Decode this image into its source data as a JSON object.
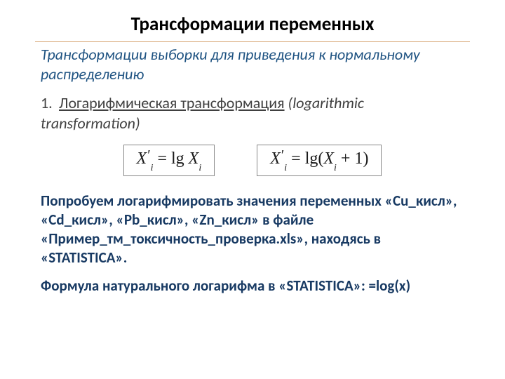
{
  "title": {
    "text": "Трансформации переменных",
    "fontsize": 27,
    "color": "#000000",
    "margin_top": 18
  },
  "divider": {
    "color": "#d9a97a"
  },
  "subtitle": {
    "text": "Трансформации выборки для приведения к нормальному распределению",
    "fontsize": 22,
    "color": "#1f5382"
  },
  "item1": {
    "number": "1.",
    "underlined": "Логарифмическая трансформация",
    "rest_italic": " (logarithmic transformation)",
    "fontsize": 22,
    "color": "#404040"
  },
  "formulas": {
    "border_color": "#888888",
    "font": "Times New Roman",
    "fontsize": 24,
    "left": {
      "var": "X",
      "sub": "i",
      "op": " = lg ",
      "rhs_var": "X",
      "rhs_sub": "i"
    },
    "right": {
      "var": "X",
      "sub": "i",
      "op": " = lg",
      "open": "(",
      "rhs_var": "X",
      "rhs_sub": "i",
      "plus": " + 1",
      "close": ")"
    }
  },
  "para1": {
    "text": "Попробуем логарифмировать значения переменных «Cu_кисл», «Cd_кисл», «Pb_кисл», «Zn_кисл» в файле «Пример_тм_токсичность_проверка.xls», находясь в «STATISTICA».",
    "fontsize": 21,
    "color": "#183a63"
  },
  "para2": {
    "text": "Формула натурального логарифма в «STATISTICA»: =log(x)",
    "fontsize": 21,
    "color": "#183a63"
  }
}
